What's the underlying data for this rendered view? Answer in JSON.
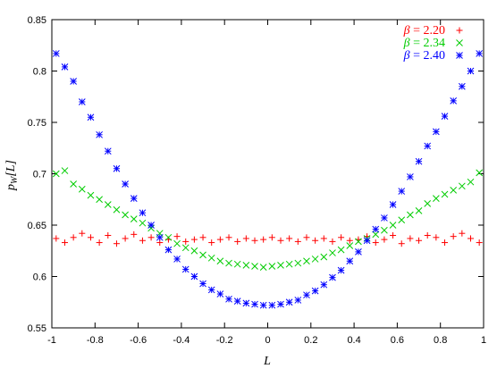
{
  "chart_data": {
    "type": "scatter",
    "xlabel": "L",
    "ylabel": "p_W[L]",
    "xlim": [
      -1,
      1
    ],
    "ylim": [
      0.55,
      0.85
    ],
    "xticks": [
      "-1",
      "-0.8",
      "-0.6",
      "-0.4",
      "-0.2",
      "0",
      "0.2",
      "0.4",
      "0.6",
      "0.8",
      "1"
    ],
    "yticks": [
      "0.55",
      "0.6",
      "0.65",
      "0.7",
      "0.75",
      "0.8",
      "0.85"
    ],
    "grid": false,
    "legend_position": "top-right",
    "series": [
      {
        "name": "β = 2.20",
        "color": "#ff0000",
        "marker": "plus",
        "x": [
          -0.98,
          -0.94,
          -0.9,
          -0.86,
          -0.82,
          -0.78,
          -0.74,
          -0.7,
          -0.66,
          -0.62,
          -0.58,
          -0.54,
          -0.5,
          -0.46,
          -0.42,
          -0.38,
          -0.34,
          -0.3,
          -0.26,
          -0.22,
          -0.18,
          -0.14,
          -0.1,
          -0.06,
          -0.02,
          0.02,
          0.06,
          0.1,
          0.14,
          0.18,
          0.22,
          0.26,
          0.3,
          0.34,
          0.38,
          0.42,
          0.46,
          0.5,
          0.54,
          0.58,
          0.62,
          0.66,
          0.7,
          0.74,
          0.78,
          0.82,
          0.86,
          0.9,
          0.94,
          0.98
        ],
        "y": [
          0.637,
          0.633,
          0.638,
          0.642,
          0.638,
          0.633,
          0.64,
          0.632,
          0.637,
          0.641,
          0.635,
          0.638,
          0.633,
          0.636,
          0.639,
          0.634,
          0.636,
          0.638,
          0.633,
          0.636,
          0.638,
          0.634,
          0.637,
          0.635,
          0.636,
          0.638,
          0.635,
          0.637,
          0.634,
          0.638,
          0.635,
          0.637,
          0.634,
          0.638,
          0.635,
          0.636,
          0.639,
          0.633,
          0.636,
          0.64,
          0.632,
          0.637,
          0.635,
          0.64,
          0.638,
          0.633,
          0.639,
          0.642,
          0.637,
          0.633
        ]
      },
      {
        "name": "β = 2.34",
        "color": "#00cc00",
        "marker": "cross",
        "x": [
          -0.98,
          -0.94,
          -0.9,
          -0.86,
          -0.82,
          -0.78,
          -0.74,
          -0.7,
          -0.66,
          -0.62,
          -0.58,
          -0.54,
          -0.5,
          -0.46,
          -0.42,
          -0.38,
          -0.34,
          -0.3,
          -0.26,
          -0.22,
          -0.18,
          -0.14,
          -0.1,
          -0.06,
          -0.02,
          0.02,
          0.06,
          0.1,
          0.14,
          0.18,
          0.22,
          0.26,
          0.3,
          0.34,
          0.38,
          0.42,
          0.46,
          0.5,
          0.54,
          0.58,
          0.62,
          0.66,
          0.7,
          0.74,
          0.78,
          0.82,
          0.86,
          0.9,
          0.94,
          0.98
        ],
        "y": [
          0.7,
          0.703,
          0.69,
          0.685,
          0.679,
          0.675,
          0.67,
          0.665,
          0.66,
          0.656,
          0.652,
          0.647,
          0.642,
          0.638,
          0.632,
          0.628,
          0.625,
          0.621,
          0.618,
          0.615,
          0.613,
          0.612,
          0.611,
          0.61,
          0.609,
          0.61,
          0.611,
          0.612,
          0.613,
          0.615,
          0.617,
          0.619,
          0.623,
          0.626,
          0.63,
          0.634,
          0.637,
          0.641,
          0.645,
          0.65,
          0.655,
          0.66,
          0.664,
          0.671,
          0.676,
          0.68,
          0.684,
          0.688,
          0.692,
          0.701
        ]
      },
      {
        "name": "β = 2.40",
        "color": "#0000ff",
        "marker": "star",
        "x": [
          -0.98,
          -0.94,
          -0.9,
          -0.86,
          -0.82,
          -0.78,
          -0.74,
          -0.7,
          -0.66,
          -0.62,
          -0.58,
          -0.54,
          -0.5,
          -0.46,
          -0.42,
          -0.38,
          -0.34,
          -0.3,
          -0.26,
          -0.22,
          -0.18,
          -0.14,
          -0.1,
          -0.06,
          -0.02,
          0.02,
          0.06,
          0.1,
          0.14,
          0.18,
          0.22,
          0.26,
          0.3,
          0.34,
          0.38,
          0.42,
          0.46,
          0.5,
          0.54,
          0.58,
          0.62,
          0.66,
          0.7,
          0.74,
          0.78,
          0.82,
          0.86,
          0.9,
          0.94,
          0.98
        ],
        "y": [
          0.817,
          0.804,
          0.79,
          0.77,
          0.755,
          0.738,
          0.722,
          0.705,
          0.69,
          0.676,
          0.662,
          0.65,
          0.638,
          0.626,
          0.617,
          0.607,
          0.6,
          0.593,
          0.587,
          0.583,
          0.578,
          0.576,
          0.574,
          0.573,
          0.572,
          0.572,
          0.573,
          0.575,
          0.577,
          0.582,
          0.586,
          0.592,
          0.599,
          0.606,
          0.615,
          0.624,
          0.635,
          0.646,
          0.657,
          0.67,
          0.683,
          0.697,
          0.712,
          0.727,
          0.741,
          0.756,
          0.771,
          0.785,
          0.8,
          0.817
        ]
      }
    ]
  }
}
